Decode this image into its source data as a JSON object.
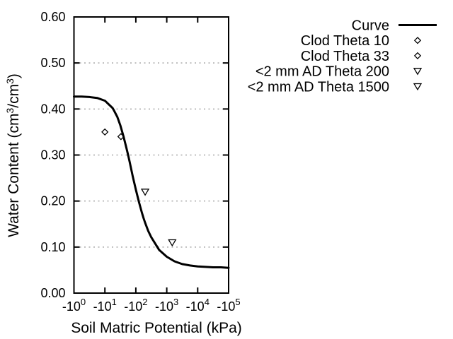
{
  "chart_data": {
    "type": "line",
    "title": "",
    "x_axis": {
      "label": "Soil Matric Potential (kPa)",
      "scale": "log10 of absolute kPa, shown as negative powers of ten",
      "tick_mantissa": "-10",
      "tick_exponents": [
        0,
        1,
        2,
        3,
        4,
        5
      ],
      "range_log10": [
        0,
        5
      ],
      "grid": false
    },
    "y_axis": {
      "label_plain": "Water Content (cm3/cm3)",
      "label_parts": [
        {
          "text": "Water Content (cm"
        },
        {
          "text": "3",
          "sup": true
        },
        {
          "text": "/cm"
        },
        {
          "text": "3",
          "sup": true
        },
        {
          "text": ")"
        }
      ],
      "tick_labels": [
        "0.00",
        "0.10",
        "0.20",
        "0.30",
        "0.40",
        "0.50",
        "0.60"
      ],
      "tick_values": [
        0,
        0.1,
        0.2,
        0.3,
        0.4,
        0.5,
        0.6
      ],
      "gridline_values": [
        0.1,
        0.2,
        0.3,
        0.4,
        0.5
      ],
      "range": [
        0,
        0.6
      ],
      "grid": true,
      "grid_style": "dotted"
    },
    "series": [
      {
        "name": "Curve",
        "type": "line",
        "x_log10_abs_kpa": [
          0,
          0.25,
          0.5,
          0.75,
          1.0,
          1.25,
          1.3,
          1.4,
          1.5,
          1.6,
          1.7,
          1.75,
          1.8,
          1.9,
          2.0,
          2.1,
          2.2,
          2.25,
          2.3,
          2.4,
          2.5,
          2.75,
          3.0,
          3.25,
          3.5,
          3.75,
          4.0,
          4.25,
          4.5,
          4.75,
          5.0
        ],
        "y_theta": [
          0.427,
          0.427,
          0.426,
          0.424,
          0.418,
          0.402,
          0.396,
          0.383,
          0.364,
          0.341,
          0.314,
          0.3,
          0.285,
          0.254,
          0.225,
          0.198,
          0.174,
          0.163,
          0.153,
          0.135,
          0.121,
          0.094,
          0.079,
          0.069,
          0.063,
          0.06,
          0.058,
          0.057,
          0.056,
          0.056,
          0.055
        ]
      },
      {
        "name": "Clod Theta 10",
        "type": "scatter",
        "marker": "diamond",
        "points": [
          {
            "kpa": -10,
            "theta": 0.35
          }
        ]
      },
      {
        "name": "Clod Theta 33",
        "type": "scatter",
        "marker": "diamond",
        "points": [
          {
            "kpa": -33,
            "theta": 0.34
          }
        ]
      },
      {
        "name": "<2 mm AD Theta 200",
        "type": "scatter",
        "marker": "triangle-down",
        "points": [
          {
            "kpa": -200,
            "theta": 0.22
          }
        ]
      },
      {
        "name": "<2 mm AD Theta 1500",
        "type": "scatter",
        "marker": "triangle-down",
        "points": [
          {
            "kpa": -1500,
            "theta": 0.11
          }
        ]
      }
    ],
    "legend": {
      "position": "top-right-outside",
      "items": [
        {
          "label": "Curve",
          "marker": "line"
        },
        {
          "label": "Clod Theta 10",
          "marker": "diamond"
        },
        {
          "label": "Clod Theta 33",
          "marker": "diamond"
        },
        {
          "label": "<2 mm AD Theta 200",
          "marker": "triangle-down"
        },
        {
          "label": "<2 mm AD Theta 1500",
          "marker": "triangle-down"
        }
      ]
    },
    "colors": {
      "background": "#ffffff",
      "curve": "#000000",
      "frame": "#000000",
      "grid": "#a8a8a8",
      "text": "#000000"
    }
  }
}
